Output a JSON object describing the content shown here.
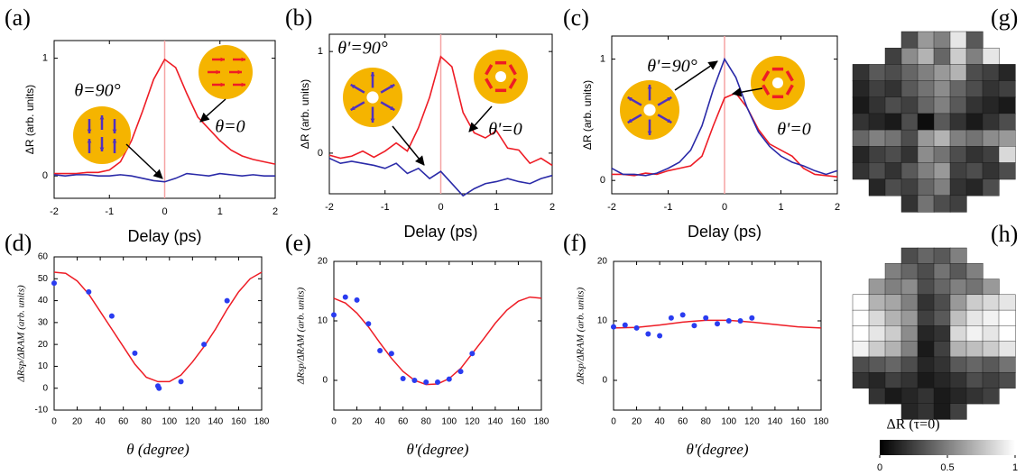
{
  "chart_data": [
    {
      "type": "line",
      "label": "(a)",
      "xlabel": "Delay (ps)",
      "ylabel": "ΔR (arb. units)",
      "x": [
        -2,
        -1.8,
        -1.6,
        -1.4,
        -1.2,
        -1,
        -0.8,
        -0.6,
        -0.4,
        -0.2,
        0,
        0.2,
        0.4,
        0.6,
        0.8,
        1,
        1.2,
        1.4,
        1.6,
        1.8,
        2
      ],
      "series": [
        {
          "name": "θ=0",
          "color": "#ee1c25",
          "values": [
            0.02,
            0.02,
            0.02,
            0.03,
            0.03,
            0.05,
            0.12,
            0.3,
            0.55,
            0.82,
            0.99,
            0.92,
            0.7,
            0.5,
            0.4,
            0.3,
            0.22,
            0.17,
            0.14,
            0.12,
            0.1
          ]
        },
        {
          "name": "θ=90°",
          "color": "#2a2aa8",
          "values": [
            0.01,
            0,
            0.01,
            0.01,
            0,
            0,
            0.01,
            0,
            -0.02,
            -0.04,
            -0.05,
            -0.02,
            0.02,
            0.01,
            0,
            0.02,
            0.01,
            0,
            0.01,
            0,
            0
          ]
        }
      ],
      "xlim": [
        -2,
        2
      ],
      "xticks": [
        -2,
        -1,
        0,
        1,
        2
      ],
      "ylim": [
        -0.19,
        1.15
      ],
      "yticks": [
        0,
        1
      ]
    },
    {
      "type": "line",
      "label": "(b)",
      "xlabel": "Delay (ps)",
      "ylabel": "ΔR (arb. units)",
      "x": [
        -2,
        -1.8,
        -1.6,
        -1.4,
        -1.2,
        -1,
        -0.8,
        -0.6,
        -0.4,
        -0.2,
        0,
        0.2,
        0.4,
        0.6,
        0.8,
        1,
        1.2,
        1.4,
        1.6,
        1.8,
        2
      ],
      "series": [
        {
          "name": "θ'=0",
          "color": "#ee1c25",
          "values": [
            -0.02,
            -0.05,
            -0.03,
            0.02,
            -0.04,
            0.02,
            0.1,
            0.02,
            0.25,
            0.55,
            0.95,
            0.85,
            0.4,
            0.2,
            0.15,
            0.22,
            0.05,
            0.03,
            -0.1,
            -0.05,
            -0.12
          ]
        },
        {
          "name": "θ'=90°",
          "color": "#2a2aa8",
          "values": [
            -0.05,
            -0.1,
            -0.08,
            -0.1,
            -0.12,
            -0.15,
            -0.1,
            -0.2,
            -0.15,
            -0.25,
            -0.18,
            -0.3,
            -0.42,
            -0.35,
            -0.3,
            -0.28,
            -0.25,
            -0.28,
            -0.3,
            -0.25,
            -0.22
          ]
        }
      ],
      "xlim": [
        -2,
        2
      ],
      "xticks": [
        -2,
        -1,
        0,
        1,
        2
      ],
      "ylim": [
        -0.4,
        1.17
      ],
      "yticks": [
        0,
        1
      ]
    },
    {
      "type": "line",
      "label": "(c)",
      "xlabel": "Delay (ps)",
      "ylabel": "ΔR (arb. units)",
      "x": [
        -2,
        -1.8,
        -1.6,
        -1.4,
        -1.2,
        -1,
        -0.8,
        -0.6,
        -0.4,
        -0.2,
        0,
        0.2,
        0.4,
        0.6,
        0.8,
        1,
        1.2,
        1.4,
        1.6,
        1.8,
        2
      ],
      "series": [
        {
          "name": "θ'=0",
          "color": "#ee1c25",
          "values": [
            0.05,
            0.05,
            0.04,
            0.06,
            0.05,
            0.08,
            0.1,
            0.12,
            0.2,
            0.45,
            0.68,
            0.72,
            0.6,
            0.42,
            0.3,
            0.25,
            0.2,
            0.1,
            0.05,
            0.04,
            0.03
          ]
        },
        {
          "name": "θ'=90°",
          "color": "#2a2aa8",
          "values": [
            0.1,
            0.05,
            0.05,
            0.04,
            0.06,
            0.1,
            0.15,
            0.25,
            0.45,
            0.75,
            1.0,
            0.85,
            0.6,
            0.4,
            0.28,
            0.2,
            0.15,
            0.12,
            0.08,
            0.05,
            0.08
          ]
        }
      ],
      "xlim": [
        -2,
        2
      ],
      "xticks": [
        -2,
        -1,
        0,
        1,
        2
      ],
      "ylim": [
        -0.11,
        1.19
      ],
      "yticks": [
        0,
        1
      ]
    },
    {
      "type": "scatter",
      "label": "(d)",
      "xlabel": "θ (degree)",
      "ylabel": "ΔRsp/ΔRAM (arb. units)",
      "x": [
        0,
        30,
        50,
        70,
        90,
        91,
        110,
        130,
        150
      ],
      "values": [
        48,
        44,
        33,
        16,
        1,
        0,
        3,
        20,
        40
      ],
      "color": "#2a3cf0",
      "fit": {
        "color": "#ee1c25",
        "x": [
          0,
          10,
          20,
          30,
          40,
          50,
          60,
          70,
          80,
          90,
          100,
          110,
          120,
          130,
          140,
          150,
          160,
          170,
          180
        ],
        "values": [
          53,
          52.5,
          49,
          43,
          35,
          27,
          19,
          11,
          5,
          3,
          3,
          6,
          12,
          19,
          27,
          36,
          44,
          50,
          53
        ]
      },
      "xlim": [
        0,
        180
      ],
      "xticks": [
        0,
        20,
        40,
        60,
        80,
        100,
        120,
        140,
        160,
        180
      ],
      "ylim": [
        -10,
        60
      ],
      "yticks": [
        -10,
        0,
        10,
        20,
        30,
        40,
        50,
        60
      ]
    },
    {
      "type": "scatter",
      "label": "(e)",
      "xlabel": "θ′(degree)",
      "ylabel": "ΔRsp/ΔRAM (arb. units)",
      "x": [
        0,
        10,
        20,
        30,
        40,
        50,
        60,
        70,
        80,
        90,
        100,
        110,
        120
      ],
      "values": [
        11,
        14,
        13.5,
        9.5,
        5,
        4.5,
        0.3,
        0,
        -0.3,
        -0.3,
        0.2,
        1.5,
        4.5
      ],
      "color": "#2a3cf0",
      "fit": {
        "color": "#ee1c25",
        "x": [
          0,
          10,
          20,
          30,
          40,
          50,
          60,
          70,
          80,
          90,
          100,
          110,
          120,
          130,
          140,
          150,
          160,
          170,
          180
        ],
        "values": [
          13.8,
          13,
          11.3,
          9,
          6.3,
          3.7,
          1.5,
          0,
          -0.7,
          -0.6,
          0.3,
          2,
          4.5,
          7,
          9.6,
          11.8,
          13.3,
          14,
          13.8
        ]
      },
      "xlim": [
        0,
        180
      ],
      "xticks": [
        0,
        20,
        40,
        60,
        80,
        100,
        120,
        140,
        160,
        180
      ],
      "ylim": [
        -5,
        20
      ],
      "yticks": [
        0,
        10,
        20
      ]
    },
    {
      "type": "scatter",
      "label": "(f)",
      "xlabel": "θ′(degree)",
      "ylabel": "ΔRsp/ΔRAM (arb. units)",
      "x": [
        0,
        10,
        20,
        30,
        40,
        50,
        60,
        70,
        80,
        90,
        100,
        110,
        120
      ],
      "values": [
        9,
        9.3,
        8.8,
        7.8,
        7.5,
        10.5,
        11,
        9.2,
        10.5,
        9.5,
        10,
        10,
        10.5
      ],
      "color": "#2a3cf0",
      "fit": {
        "color": "#ee1c25",
        "x": [
          0,
          20,
          40,
          60,
          80,
          100,
          120,
          140,
          160,
          180
        ],
        "values": [
          8.8,
          8.9,
          9.3,
          9.8,
          10.1,
          10.1,
          9.8,
          9.4,
          9,
          8.8
        ]
      },
      "xlim": [
        0,
        180
      ],
      "xticks": [
        0,
        20,
        40,
        60,
        80,
        100,
        120,
        140,
        160,
        180
      ],
      "ylim": [
        -5,
        20
      ],
      "yticks": [
        0,
        10,
        20
      ]
    },
    {
      "type": "heatmap",
      "label": "(g)",
      "vlim": [
        0,
        1
      ],
      "values": [
        [
          null,
          null,
          null,
          0.3,
          0.6,
          0.5,
          0.9,
          0.35,
          null,
          null
        ],
        [
          null,
          null,
          0.25,
          0.55,
          0.7,
          0.4,
          0.8,
          0.5,
          0.9,
          null
        ],
        [
          0.2,
          0.35,
          0.3,
          0.4,
          0.5,
          0.6,
          0.7,
          0.3,
          0.25,
          0.15
        ],
        [
          0.15,
          0.25,
          0.2,
          0.35,
          0.45,
          0.55,
          0.4,
          0.3,
          0.2,
          0.25
        ],
        [
          0.1,
          0.2,
          0.3,
          0.25,
          0.4,
          0.5,
          0.35,
          0.2,
          0.15,
          0.1
        ],
        [
          0.2,
          0.15,
          0.1,
          0.3,
          0.05,
          0.35,
          0.2,
          0.1,
          0.2,
          0.3
        ],
        [
          0.4,
          0.5,
          0.45,
          0.3,
          0.6,
          0.7,
          0.5,
          0.45,
          0.55,
          0.6
        ],
        [
          0.15,
          0.25,
          0.3,
          0.2,
          0.55,
          0.45,
          0.3,
          0.2,
          0.25,
          0.85
        ],
        [
          0.2,
          0.3,
          0.2,
          0.35,
          0.5,
          0.6,
          0.25,
          0.3,
          0.2,
          0.3
        ],
        [
          null,
          0.15,
          0.3,
          0.25,
          0.4,
          0.5,
          0.2,
          0.15,
          0.3,
          null
        ],
        [
          null,
          null,
          null,
          0.2,
          0.45,
          0.3,
          0.25,
          null,
          null,
          null
        ]
      ]
    },
    {
      "type": "heatmap",
      "label": "(h)",
      "vlim": [
        0,
        1
      ],
      "values": [
        [
          null,
          null,
          null,
          0.3,
          0.4,
          0.35,
          0.5,
          null,
          null,
          null
        ],
        [
          null,
          null,
          0.5,
          0.4,
          0.3,
          0.45,
          0.35,
          0.5,
          null,
          null
        ],
        [
          null,
          0.6,
          0.5,
          0.55,
          0.3,
          0.4,
          0.5,
          0.45,
          0.6,
          null
        ],
        [
          1,
          0.7,
          0.65,
          0.5,
          0.2,
          0.3,
          0.6,
          0.8,
          0.85,
          0.9
        ],
        [
          1,
          0.85,
          0.7,
          0.6,
          0.25,
          0.35,
          0.75,
          0.9,
          0.95,
          1
        ],
        [
          1,
          0.9,
          0.8,
          0.55,
          0.15,
          0.2,
          0.85,
          0.95,
          0.9,
          1
        ],
        [
          0.95,
          0.8,
          0.7,
          0.5,
          0.1,
          0.25,
          0.7,
          0.75,
          0.8,
          0.9
        ],
        [
          0.3,
          0.35,
          0.4,
          0.3,
          0.15,
          0.2,
          0.35,
          0.4,
          0.35,
          0.45
        ],
        [
          0.2,
          0.15,
          0.25,
          0.2,
          0.1,
          0.15,
          0.2,
          0.3,
          0.25,
          0.3
        ],
        [
          null,
          0.2,
          0.1,
          0.15,
          0.2,
          0.1,
          0.15,
          0.2,
          0.25,
          null
        ],
        [
          null,
          null,
          null,
          0.15,
          0.2,
          0.1,
          0.25,
          null,
          null,
          null
        ]
      ],
      "colorbar": {
        "title": "ΔR (τ=0)",
        "ticks": [
          0,
          0.5,
          1
        ]
      }
    }
  ]
}
